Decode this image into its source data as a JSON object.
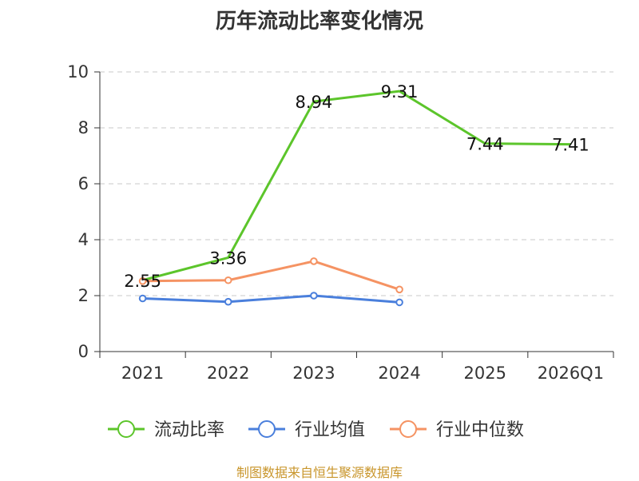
{
  "title": "历年流动比率变化情况",
  "source": "制图数据来自恒生聚源数据库",
  "chart_data": {
    "type": "line",
    "title": "历年流动比率变化情况",
    "categories": [
      "2021",
      "2022",
      "2023",
      "2024",
      "2025",
      "2026Q1"
    ],
    "ylim": [
      0,
      10
    ],
    "yticks": [
      0,
      2,
      4,
      6,
      8,
      10
    ],
    "grid": true,
    "legend_position": "bottom",
    "series": [
      {
        "name": "流动比率",
        "color": "#5cc52b",
        "values": [
          2.55,
          3.36,
          8.94,
          9.31,
          7.44,
          7.41
        ],
        "labels": [
          "2.55",
          "3.36",
          "8.94",
          "9.31",
          "7.44",
          "7.41"
        ],
        "markers": false
      },
      {
        "name": "行业均值",
        "color": "#4a7fdc",
        "values": [
          1.9,
          1.78,
          2.0,
          1.76,
          null,
          null
        ],
        "markers": true
      },
      {
        "name": "行业中位数",
        "color": "#f59363",
        "values": [
          2.52,
          2.55,
          3.23,
          2.22,
          null,
          null
        ],
        "markers": true
      }
    ]
  }
}
